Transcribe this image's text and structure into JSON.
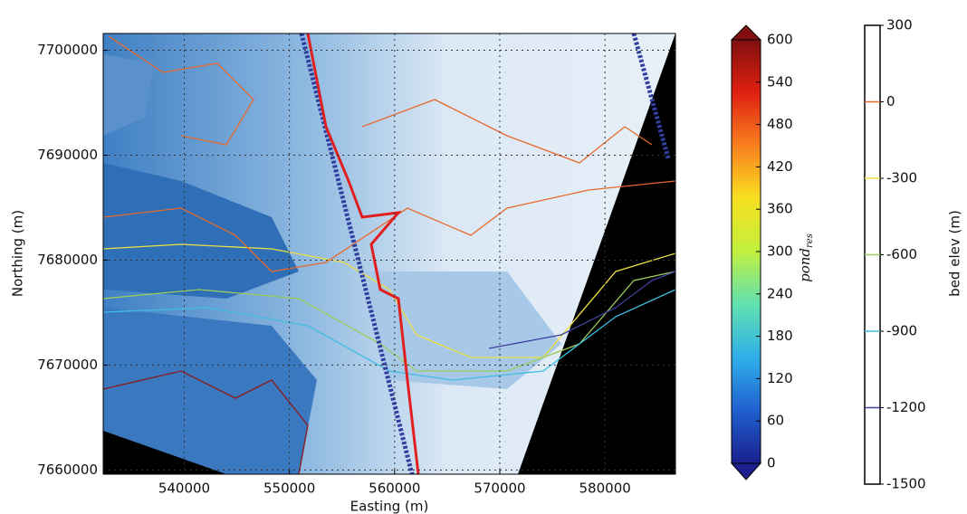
{
  "chart_data": {
    "type": "map",
    "xlabel": "Easting (m)",
    "ylabel": "Northing (m)",
    "xlim": [
      532300,
      586700
    ],
    "ylim": [
      7659600,
      7701600
    ],
    "xticks": [
      540000,
      550000,
      560000,
      570000,
      580000
    ],
    "yticks": [
      7660000,
      7670000,
      7680000,
      7690000,
      7700000
    ],
    "grid": true,
    "colorbars": [
      {
        "label": "pond",
        "label_sub": "res",
        "lim": [
          0,
          600
        ],
        "extend": true,
        "ticks": [
          0,
          60,
          120,
          180,
          240,
          300,
          360,
          420,
          480,
          540,
          600
        ],
        "colors": [
          "#1a1f8c",
          "#2060d0",
          "#30b0e8",
          "#60e0b0",
          "#c0f040",
          "#f8e020",
          "#f88020",
          "#e02010",
          "#801010"
        ]
      },
      {
        "label": "bed elev (m)",
        "lim": [
          -1500,
          300
        ],
        "ticks": [
          300,
          0,
          -300,
          -600,
          -900,
          -1200,
          -1500
        ],
        "level_colors": [
          null,
          "#e8692c",
          "#ece040",
          "#9acd5a",
          "#40bde0",
          "#3f3f9e",
          null
        ]
      }
    ]
  }
}
